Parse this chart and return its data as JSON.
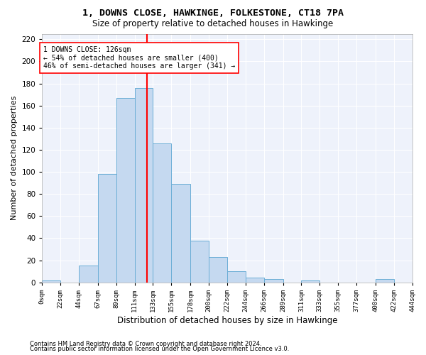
{
  "title": "1, DOWNS CLOSE, HAWKINGE, FOLKESTONE, CT18 7PA",
  "subtitle": "Size of property relative to detached houses in Hawkinge",
  "xlabel": "Distribution of detached houses by size in Hawkinge",
  "ylabel": "Number of detached properties",
  "bar_color": "#c5d9f0",
  "bar_edge_color": "#6baed6",
  "bins": [
    0,
    22,
    44,
    67,
    89,
    111,
    133,
    155,
    178,
    200,
    222,
    244,
    266,
    289,
    311,
    333,
    355,
    377,
    400,
    422,
    444
  ],
  "counts": [
    2,
    0,
    15,
    98,
    167,
    176,
    126,
    89,
    38,
    23,
    10,
    4,
    3,
    0,
    2,
    0,
    0,
    0,
    3,
    0
  ],
  "property_size": 126,
  "vline_color": "red",
  "annotation_text": "1 DOWNS CLOSE: 126sqm\n← 54% of detached houses are smaller (400)\n46% of semi-detached houses are larger (341) →",
  "annotation_box_color": "white",
  "annotation_edge_color": "red",
  "ylim": [
    0,
    225
  ],
  "yticks": [
    0,
    20,
    40,
    60,
    80,
    100,
    120,
    140,
    160,
    180,
    200,
    220
  ],
  "footnote1": "Contains HM Land Registry data © Crown copyright and database right 2024.",
  "footnote2": "Contains public sector information licensed under the Open Government Licence v3.0.",
  "bg_color": "#eef2fb",
  "grid_color": "#ffffff",
  "tick_labels": [
    "0sqm",
    "22sqm",
    "44sqm",
    "67sqm",
    "89sqm",
    "111sqm",
    "133sqm",
    "155sqm",
    "178sqm",
    "200sqm",
    "222sqm",
    "244sqm",
    "266sqm",
    "289sqm",
    "311sqm",
    "333sqm",
    "355sqm",
    "377sqm",
    "400sqm",
    "422sqm",
    "444sqm"
  ]
}
